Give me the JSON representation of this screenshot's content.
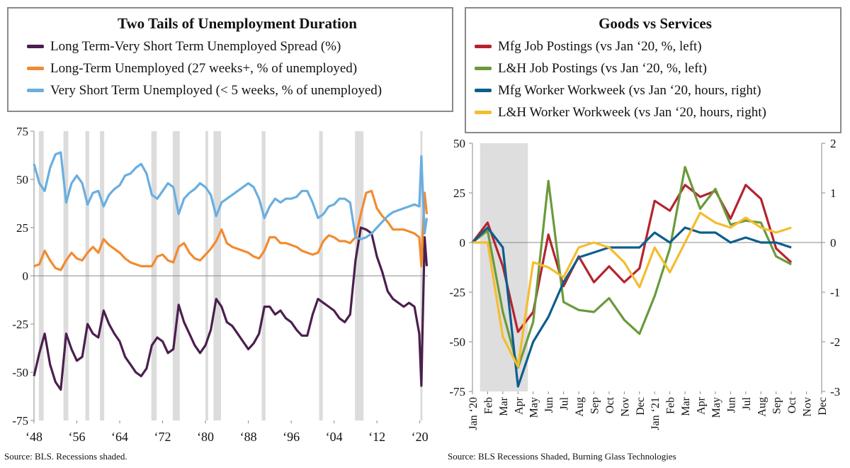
{
  "left": {
    "legend_title": "Two Tails of Unemployment Duration",
    "source": "Source: BLS. Recessions shaded.",
    "chart_data": {
      "type": "line",
      "title": "Two Tails of Unemployment Duration",
      "x_tick_labels": [
        "‘48",
        "‘56",
        "‘64",
        "‘72",
        "‘80",
        "‘88",
        "‘96",
        "‘04",
        "‘12",
        "‘20"
      ],
      "x_tick_values": [
        1948,
        1956,
        1964,
        1972,
        1980,
        1988,
        1996,
        2004,
        2012,
        2020
      ],
      "xlim": [
        1948,
        2021.5
      ],
      "ylim": [
        -75,
        75
      ],
      "y_ticks": [
        75,
        50,
        25,
        0,
        -25,
        -50,
        -75
      ],
      "y_tick_labels": [
        "75",
        "50",
        "25",
        "0",
        "-25",
        "-50",
        "-75"
      ],
      "grid": false,
      "recessions": [
        [
          1948.9,
          1949.8
        ],
        [
          1953.5,
          1954.4
        ],
        [
          1957.6,
          1958.3
        ],
        [
          1960.3,
          1961.1
        ],
        [
          1969.9,
          1970.9
        ],
        [
          1973.9,
          1975.2
        ],
        [
          1980.0,
          1980.5
        ],
        [
          1981.5,
          1982.9
        ],
        [
          1990.5,
          1991.2
        ],
        [
          2001.2,
          2001.9
        ],
        [
          2007.9,
          2009.5
        ],
        [
          2020.1,
          2020.3
        ]
      ],
      "series": [
        {
          "name": "Long Term-Very Short Term Unemployed Spread (%)",
          "color": "#4b1f4e",
          "x": [
            1948,
            1949,
            1950,
            1951,
            1952,
            1953,
            1954,
            1955,
            1956,
            1957,
            1958,
            1959,
            1960,
            1961,
            1962,
            1963,
            1964,
            1965,
            1966,
            1967,
            1968,
            1969,
            1970,
            1971,
            1972,
            1973,
            1974,
            1975,
            1976,
            1977,
            1978,
            1979,
            1980,
            1981,
            1982,
            1983,
            1984,
            1985,
            1986,
            1987,
            1988,
            1989,
            1990,
            1991,
            1992,
            1993,
            1994,
            1995,
            1996,
            1997,
            1998,
            1999,
            2000,
            2001,
            2002,
            2003,
            2004,
            2005,
            2006,
            2007,
            2008,
            2009,
            2010,
            2011,
            2012,
            2013,
            2014,
            2015,
            2016,
            2017,
            2018,
            2019,
            2019.9,
            2020.3,
            2020.5,
            2020.9,
            2021.3
          ],
          "values": [
            -52,
            -40,
            -30,
            -46,
            -55,
            -59,
            -30,
            -38,
            -44,
            -42,
            -25,
            -30,
            -32,
            -18,
            -25,
            -30,
            -34,
            -42,
            -46,
            -50,
            -52,
            -48,
            -36,
            -32,
            -34,
            -40,
            -38,
            -15,
            -24,
            -30,
            -36,
            -40,
            -36,
            -28,
            -12,
            -16,
            -24,
            -26,
            -30,
            -34,
            -38,
            -35,
            -30,
            -16,
            -16,
            -20,
            -18,
            -22,
            -24,
            -28,
            -31,
            -31,
            -20,
            -12,
            -14,
            -16,
            -18,
            -22,
            -24,
            -20,
            8,
            25,
            24,
            22,
            10,
            2,
            -8,
            -12,
            -14,
            -16,
            -14,
            -16,
            -30,
            -57,
            -30,
            20,
            5
          ]
        },
        {
          "name": "Long-Term Unemployed (27 weeks+, % of unemployed)",
          "color": "#f28b30",
          "x": [
            1948,
            1949,
            1950,
            1951,
            1952,
            1953,
            1954,
            1955,
            1956,
            1957,
            1958,
            1959,
            1960,
            1961,
            1962,
            1963,
            1964,
            1965,
            1966,
            1967,
            1968,
            1969,
            1970,
            1971,
            1972,
            1973,
            1974,
            1975,
            1976,
            1977,
            1978,
            1979,
            1980,
            1981,
            1982,
            1983,
            1984,
            1985,
            1986,
            1987,
            1988,
            1989,
            1990,
            1991,
            1992,
            1993,
            1994,
            1995,
            1996,
            1997,
            1998,
            1999,
            2000,
            2001,
            2002,
            2003,
            2004,
            2005,
            2006,
            2007,
            2008,
            2009,
            2010,
            2011,
            2012,
            2013,
            2014,
            2015,
            2016,
            2017,
            2018,
            2019,
            2019.9,
            2020.3,
            2020.5,
            2020.9,
            2021.3
          ],
          "values": [
            5,
            6,
            13,
            8,
            4,
            3,
            8,
            12,
            9,
            8,
            12,
            15,
            12,
            19,
            16,
            14,
            12,
            9,
            7,
            6,
            5,
            5,
            5,
            10,
            11,
            8,
            7,
            15,
            17,
            12,
            9,
            8,
            11,
            14,
            18,
            24,
            17,
            15,
            14,
            13,
            12,
            10,
            9,
            13,
            20,
            20,
            17,
            17,
            16,
            15,
            13,
            12,
            11,
            12,
            18,
            21,
            20,
            18,
            18,
            17,
            20,
            32,
            43,
            44,
            35,
            31,
            28,
            24,
            24,
            24,
            23,
            22,
            20,
            5,
            18,
            43,
            32
          ]
        },
        {
          "name": "Very Short Term Unemployed (< 5 weeks, % of unemployed)",
          "color": "#6aaedf",
          "x": [
            1948,
            1949,
            1950,
            1951,
            1952,
            1953,
            1954,
            1955,
            1956,
            1957,
            1958,
            1959,
            1960,
            1961,
            1962,
            1963,
            1964,
            1965,
            1966,
            1967,
            1968,
            1969,
            1970,
            1971,
            1972,
            1973,
            1974,
            1975,
            1976,
            1977,
            1978,
            1979,
            1980,
            1981,
            1982,
            1983,
            1984,
            1985,
            1986,
            1987,
            1988,
            1989,
            1990,
            1991,
            1992,
            1993,
            1994,
            1995,
            1996,
            1997,
            1998,
            1999,
            2000,
            2001,
            2002,
            2003,
            2004,
            2005,
            2006,
            2007,
            2008,
            2009,
            2010,
            2011,
            2012,
            2013,
            2014,
            2015,
            2016,
            2017,
            2018,
            2019,
            2019.9,
            2020.3,
            2020.5,
            2020.9,
            2021.3
          ],
          "values": [
            58,
            48,
            44,
            56,
            63,
            64,
            38,
            48,
            52,
            48,
            37,
            43,
            44,
            36,
            42,
            45,
            47,
            52,
            53,
            56,
            58,
            53,
            42,
            40,
            44,
            48,
            46,
            32,
            40,
            43,
            45,
            48,
            46,
            42,
            31,
            38,
            40,
            42,
            44,
            46,
            48,
            46,
            40,
            30,
            36,
            40,
            38,
            40,
            40,
            41,
            44,
            44,
            38,
            30,
            32,
            36,
            37,
            40,
            40,
            38,
            20,
            19,
            20,
            22,
            25,
            28,
            31,
            33,
            34,
            35,
            36,
            37,
            36,
            62,
            48,
            22,
            30
          ]
        }
      ]
    }
  },
  "right": {
    "legend_title": "Goods vs Services",
    "source": "Source: BLS Recessions Shaded, Burning Glass Technologies",
    "chart_data": {
      "type": "line",
      "title": "Goods vs Services",
      "categories": [
        "Jan ‘20",
        "Feb",
        "Mar",
        "Apr",
        "May",
        "Jun",
        "Jul",
        "Aug",
        "Sep",
        "Oct",
        "Nov",
        "Dec",
        "Jan ‘21",
        "Feb",
        "Mar",
        "Apr",
        "May",
        "Jun",
        "Jul",
        "Aug",
        "Sep",
        "Oct",
        "Nov",
        "Dec"
      ],
      "ylim_left": [
        -75,
        50
      ],
      "y_ticks_left": [
        50,
        25,
        0,
        -25,
        -50,
        -75
      ],
      "y_tick_labels_left": [
        "50",
        "25",
        "0",
        "-25",
        "-50",
        "-75"
      ],
      "ylim_right": [
        -3,
        2
      ],
      "y_ticks_right": [
        2,
        1,
        0,
        -1,
        -2,
        -3
      ],
      "y_tick_labels_right": [
        "2",
        "1",
        "0",
        "-1",
        "-2",
        "-3"
      ],
      "grid": false,
      "recession_months": [
        0,
        3
      ],
      "series": [
        {
          "name": "Mfg Job Postings (vs Jan ‘20, %, left)",
          "color": "#b5242f",
          "axis": "left",
          "x": [
            0,
            1,
            2,
            3,
            4,
            5,
            6,
            7,
            8,
            9,
            10,
            11,
            12,
            13,
            14,
            15,
            16,
            17,
            18,
            19,
            20,
            21
          ],
          "values": [
            0,
            10,
            -12,
            -45,
            -35,
            4,
            -22,
            -7,
            -20,
            -12,
            -20,
            -13,
            21,
            16,
            29,
            23,
            26,
            12,
            29,
            22,
            -3,
            -10
          ]
        },
        {
          "name": "L&H Job Postings (vs Jan ‘20, %, left)",
          "color": "#6a9a3b",
          "axis": "left",
          "x": [
            0,
            1,
            2,
            3,
            4,
            5,
            6,
            7,
            8,
            9,
            10,
            11,
            12,
            13,
            14,
            15,
            16,
            17,
            18,
            19,
            20,
            21
          ],
          "values": [
            0,
            6,
            -35,
            -63,
            -40,
            31,
            -30,
            -34,
            -35,
            -28,
            -39,
            -46,
            -27,
            -3,
            38,
            17,
            27,
            9,
            11,
            10,
            -7,
            -11
          ]
        },
        {
          "name": "Mfg Worker Workweek (vs Jan ‘20, hours, right)",
          "color": "#0e5d8c",
          "axis": "right",
          "x": [
            0,
            1,
            2,
            3,
            4,
            5,
            6,
            7,
            8,
            9,
            10,
            11,
            12,
            13,
            14,
            15,
            16,
            17,
            18,
            19,
            20,
            21
          ],
          "values": [
            0,
            0.3,
            -0.1,
            -2.9,
            -2.0,
            -1.5,
            -0.8,
            -0.3,
            -0.2,
            -0.1,
            -0.1,
            -0.1,
            0.2,
            0.0,
            0.3,
            0.2,
            0.2,
            0.0,
            0.1,
            0.0,
            0.0,
            -0.1
          ]
        },
        {
          "name": "L&H Worker Workweek (vs Jan ‘20, hours, right)",
          "color": "#f5bc2f",
          "axis": "right",
          "x": [
            0,
            1,
            2,
            3,
            4,
            5,
            6,
            7,
            8,
            9,
            10,
            11,
            12,
            13,
            14,
            15,
            16,
            17,
            18,
            19,
            20,
            21
          ],
          "values": [
            0,
            0,
            -1.9,
            -2.5,
            -0.4,
            -0.5,
            -0.7,
            -0.1,
            0.0,
            -0.1,
            -0.4,
            -0.9,
            -0.1,
            -0.6,
            0.0,
            0.6,
            0.4,
            0.3,
            0.5,
            0.3,
            0.2,
            0.3
          ]
        }
      ]
    }
  }
}
